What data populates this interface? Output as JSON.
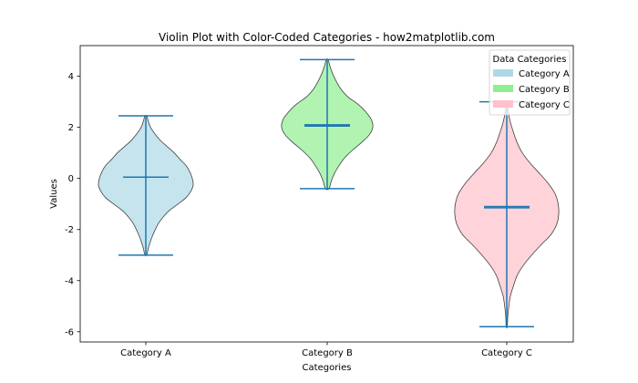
{
  "chart_data": {
    "type": "violin",
    "title": "Violin Plot with Color-Coded Categories - how2matplotlib.com",
    "xlabel": "Categories",
    "ylabel": "Values",
    "categories": [
      "Category A",
      "Category B",
      "Category C"
    ],
    "ylim": [
      -6.4,
      5.2
    ],
    "yticks": [
      -6,
      -4,
      -2,
      0,
      2,
      4
    ],
    "ytick_labels": [
      "-6",
      "-4",
      "-2",
      "0",
      "2",
      "4"
    ],
    "grid": false,
    "legend": {
      "title": "Data Categories",
      "placement": "top-right",
      "entries": [
        "Category A",
        "Category B",
        "Category C"
      ]
    },
    "series": [
      {
        "category": "Category A",
        "color": "#add8e6",
        "min": -3.0,
        "max": 2.45,
        "mean": 0.05,
        "median": 0.05,
        "density_profile": [
          [
            -3.0,
            0.02
          ],
          [
            -2.75,
            0.05
          ],
          [
            -2.5,
            0.09
          ],
          [
            -2.25,
            0.14
          ],
          [
            -2.0,
            0.2
          ],
          [
            -1.75,
            0.27
          ],
          [
            -1.5,
            0.37
          ],
          [
            -1.25,
            0.5
          ],
          [
            -1.0,
            0.68
          ],
          [
            -0.75,
            0.85
          ],
          [
            -0.5,
            0.95
          ],
          [
            -0.25,
            1.0
          ],
          [
            0.0,
            0.98
          ],
          [
            0.25,
            0.93
          ],
          [
            0.5,
            0.85
          ],
          [
            0.75,
            0.72
          ],
          [
            1.0,
            0.6
          ],
          [
            1.25,
            0.45
          ],
          [
            1.5,
            0.3
          ],
          [
            1.75,
            0.19
          ],
          [
            2.0,
            0.1
          ],
          [
            2.25,
            0.05
          ],
          [
            2.45,
            0.02
          ]
        ]
      },
      {
        "category": "Category B",
        "color": "#90ee90",
        "min": -0.4,
        "max": 4.65,
        "mean": 2.1,
        "median": 2.05,
        "density_profile": [
          [
            -0.4,
            0.04
          ],
          [
            -0.1,
            0.09
          ],
          [
            0.2,
            0.16
          ],
          [
            0.5,
            0.26
          ],
          [
            0.8,
            0.38
          ],
          [
            1.1,
            0.55
          ],
          [
            1.4,
            0.75
          ],
          [
            1.7,
            0.92
          ],
          [
            2.0,
            1.0
          ],
          [
            2.3,
            0.97
          ],
          [
            2.6,
            0.85
          ],
          [
            2.9,
            0.68
          ],
          [
            3.2,
            0.45
          ],
          [
            3.5,
            0.3
          ],
          [
            3.8,
            0.2
          ],
          [
            4.1,
            0.12
          ],
          [
            4.4,
            0.06
          ],
          [
            4.65,
            0.02
          ]
        ]
      },
      {
        "category": "Category C",
        "color": "#ffc0cb",
        "min": -5.8,
        "max": 3.0,
        "mean": -1.1,
        "median": -1.15,
        "density_profile": [
          [
            -5.8,
            0.01
          ],
          [
            -5.4,
            0.02
          ],
          [
            -5.0,
            0.04
          ],
          [
            -4.6,
            0.07
          ],
          [
            -4.2,
            0.13
          ],
          [
            -3.8,
            0.2
          ],
          [
            -3.4,
            0.32
          ],
          [
            -3.0,
            0.48
          ],
          [
            -2.6,
            0.66
          ],
          [
            -2.2,
            0.85
          ],
          [
            -1.8,
            0.96
          ],
          [
            -1.4,
            1.0
          ],
          [
            -1.0,
            0.99
          ],
          [
            -0.6,
            0.93
          ],
          [
            -0.2,
            0.8
          ],
          [
            0.2,
            0.63
          ],
          [
            0.6,
            0.45
          ],
          [
            1.0,
            0.3
          ],
          [
            1.4,
            0.2
          ],
          [
            1.8,
            0.13
          ],
          [
            2.2,
            0.07
          ],
          [
            2.6,
            0.03
          ],
          [
            3.0,
            0.01
          ]
        ]
      }
    ],
    "stat_line_color": "#1f77b4",
    "outline_color": "#404040"
  }
}
